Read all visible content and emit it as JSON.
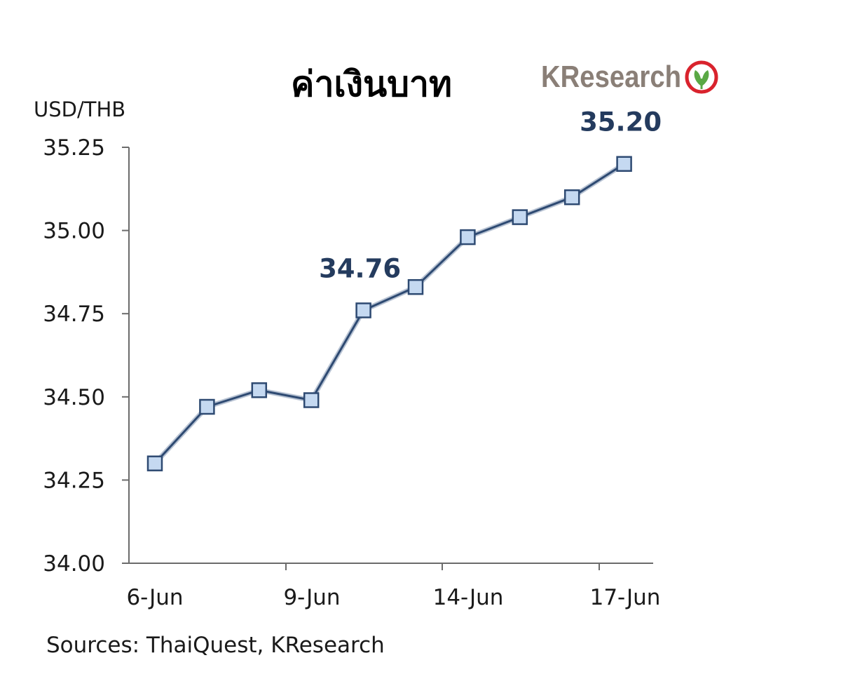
{
  "title": "ค่าเงินบาท",
  "logo": {
    "text": "KResearch",
    "icon": "kasikorn-leaf-logo-icon",
    "icon_color": "#d9232d",
    "leaf_color": "#5aa845",
    "text_color": "#8a7f77"
  },
  "chart_data": {
    "type": "line",
    "title": "ค่าเงินบาท",
    "ylabel": "USD/THB",
    "xlabel": "",
    "ylim": [
      34.0,
      35.25
    ],
    "yticks": [
      "34.00",
      "34.25",
      "34.50",
      "34.75",
      "35.00",
      "35.25"
    ],
    "xtick_labels": [
      "6-Jun",
      "9-Jun",
      "14-Jun",
      "17-Jun"
    ],
    "x": [
      1,
      2,
      3,
      4,
      5,
      6,
      7,
      8,
      9,
      10
    ],
    "values": [
      34.3,
      34.47,
      34.52,
      34.49,
      34.76,
      34.83,
      34.98,
      35.04,
      35.1,
      35.2
    ],
    "annotations": [
      {
        "label": "34.76",
        "point_index": 4
      },
      {
        "label": "35.20",
        "point_index": 9
      }
    ],
    "grid": false,
    "legend": "none",
    "line_color": "#2e4a72",
    "marker_fill": "#c5d9f1",
    "marker_stroke": "#2e4a72",
    "marker": "square"
  },
  "footer": {
    "source": "Sources: ThaiQuest, KResearch"
  }
}
